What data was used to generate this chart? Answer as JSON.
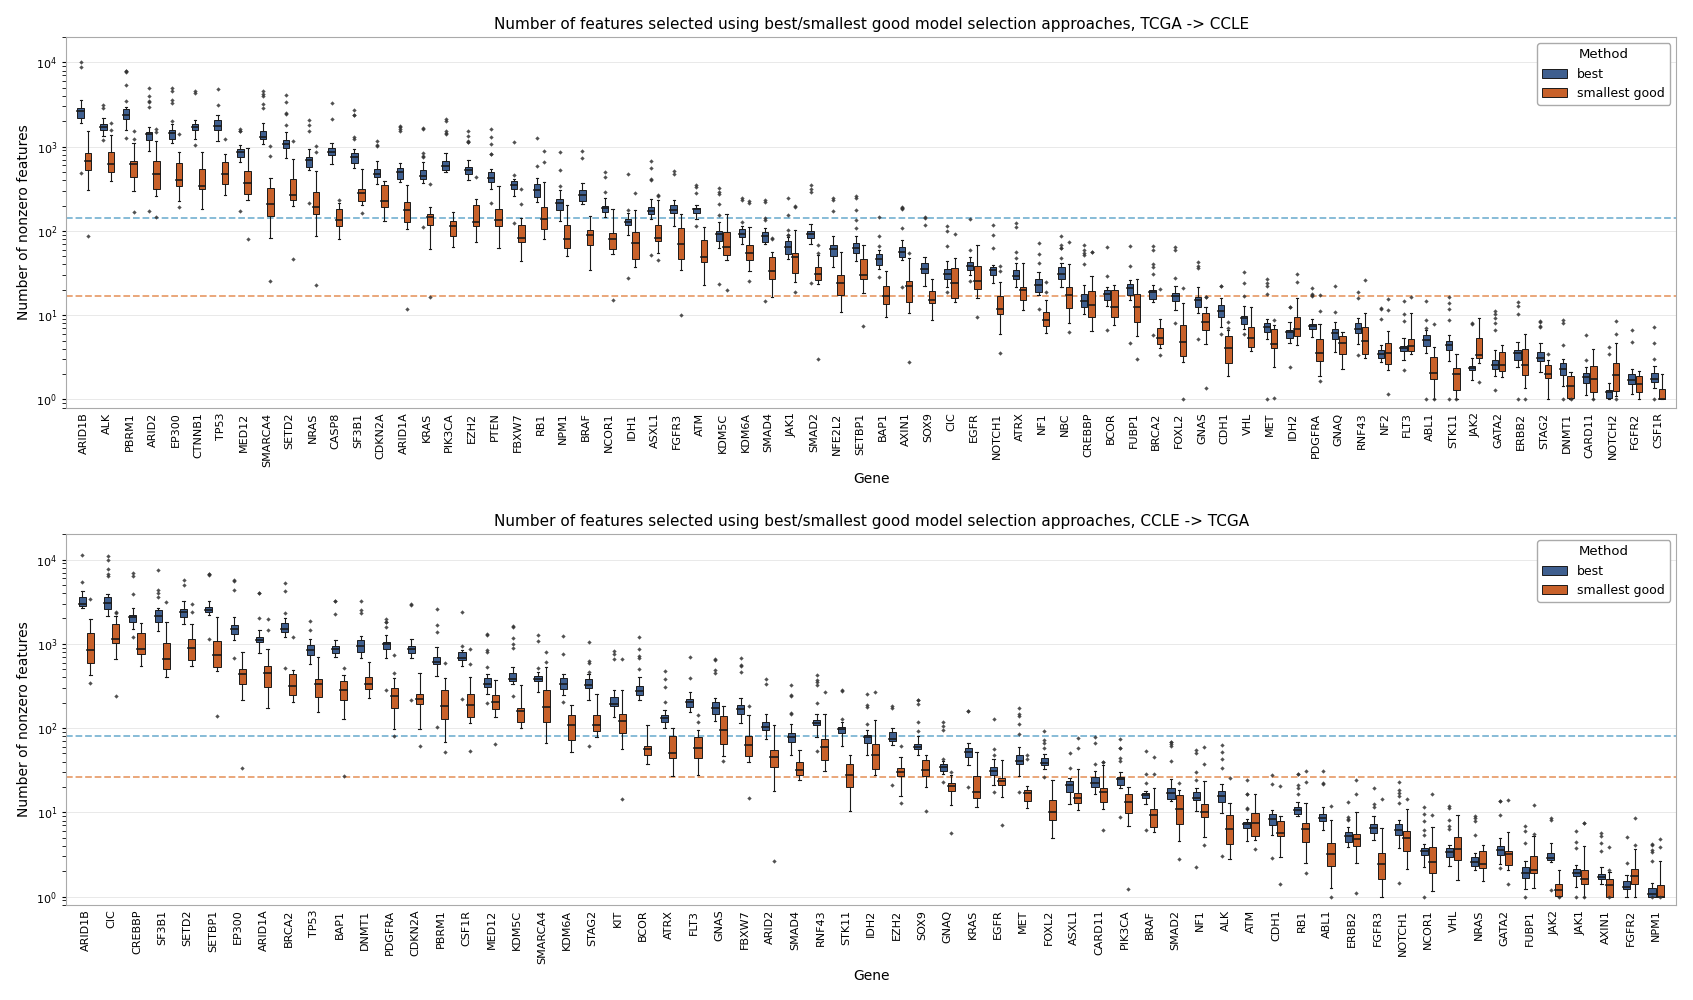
{
  "tcga_to_ccle": {
    "title": "Number of features selected using best/smallest good model selection approaches, TCGA -> CCLE",
    "genes": [
      "ARID1B",
      "ALK",
      "PBRM1",
      "ARID2",
      "EP300",
      "CTNNB1",
      "TP53",
      "MED12",
      "SMARCA4",
      "SETD2",
      "NRAS",
      "CASP8",
      "SF3B1",
      "CDKN2A",
      "ARID1A",
      "KRAS",
      "PIK3CA",
      "EZH2",
      "PTEN",
      "FBXW7",
      "RB1",
      "NPM1",
      "BRAF",
      "NCOR1",
      "IDH1",
      "ASXL1",
      "FGFR3",
      "ATM",
      "KDM5C",
      "KDM6A",
      "SMAD4",
      "JAK1",
      "SMAD2",
      "NFE2L2",
      "SETBP1",
      "BAP1",
      "AXIN1",
      "SOX9",
      "CIC",
      "EGFR",
      "NOTCH1",
      "ATRX",
      "NF1",
      "NBC",
      "CREBBP",
      "BCOR",
      "FUBP1",
      "BRCA2",
      "FOXL2",
      "GNAS",
      "CDH1",
      "VHL",
      "MET",
      "IDH2",
      "PDGFRA",
      "GNAQ",
      "RNF43",
      "NF2",
      "FLT3",
      "ABL1",
      "STK11",
      "JAK2",
      "GATA2",
      "ERBB2",
      "STAG2",
      "DNMT1",
      "CARD11",
      "NOTCH2",
      "FGFR2",
      "CSF1R"
    ],
    "best_median": 144,
    "smallest_good_median": 17
  },
  "ccle_to_tcga": {
    "title": "Number of features selected using best/smallest good model selection approaches, CCLE -> TCGA",
    "genes": [
      "ARID1B",
      "CIC",
      "CREBBP",
      "SF3B1",
      "SETD2",
      "SETBP1",
      "EP300",
      "ARID1A",
      "BRCA2",
      "TP53",
      "BAP1",
      "DNMT1",
      "PDGFRA",
      "CDKN2A",
      "PBRM1",
      "CSF1R",
      "MED12",
      "KDM5C",
      "SMARCA4",
      "KDM6A",
      "STAG2",
      "KIT",
      "BCOR",
      "ATRX",
      "FLT3",
      "GNAS",
      "FBXW7",
      "ARID2",
      "SMAD4",
      "RNF43",
      "STK11",
      "IDH2",
      "EZH2",
      "SOX9",
      "GNAQ",
      "KRAS",
      "EGFR",
      "MET",
      "FOXL2",
      "ASXL1",
      "CARD11",
      "PIK3CA",
      "BRAF",
      "SMAD2",
      "NF1",
      "ALK",
      "ATM",
      "CDH1",
      "RB1",
      "ABL1",
      "ERBB2",
      "FGFR3",
      "NOTCH1",
      "NCOR1",
      "VHL",
      "NRAS",
      "GATA2",
      "FUBP1",
      "JAK2",
      "JAK1",
      "AXIN1",
      "FGFR2",
      "NPM1"
    ],
    "best_median": 80,
    "smallest_good_median": 26
  },
  "ylabel": "Number of nonzero features",
  "xlabel": "Gene",
  "best_color": "#3F5F8F",
  "smallest_good_color": "#C8612A",
  "best_dashed_color": "#7EB6D4",
  "smallest_good_dashed_color": "#E8A070",
  "facecolor": "white",
  "legend_title": "Method",
  "flier_color": "#333333"
}
